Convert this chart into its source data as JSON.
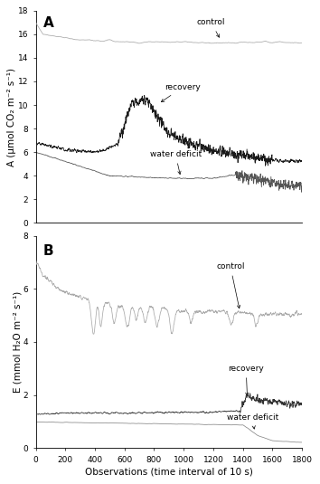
{
  "panel_A": {
    "label": "A",
    "ylabel": "A (μmol CO₂ m⁻² s⁻¹)",
    "ylim": [
      0,
      18
    ],
    "yticks": [
      0,
      2,
      4,
      6,
      8,
      10,
      12,
      14,
      16,
      18
    ],
    "xlim": [
      0,
      1800
    ],
    "xticks_A": [
      0,
      200,
      400,
      600,
      800,
      1000,
      1200,
      1400,
      1600,
      1800
    ]
  },
  "panel_B": {
    "label": "B",
    "ylabel": "E (mmol H₂O m⁻² s⁻¹)",
    "ylim": [
      0,
      8
    ],
    "yticks": [
      0,
      2,
      4,
      6,
      8
    ],
    "xlim": [
      0,
      1800
    ],
    "xticks": [
      0,
      200,
      400,
      600,
      800,
      1000,
      1200,
      1400,
      1600,
      1800
    ],
    "xlabel": "Observations (time interval of 10 s)"
  },
  "fig_bg": "#ffffff",
  "line_width": 0.55,
  "annotation_fontsize": 6.5,
  "label_fontsize": 7.5,
  "tick_fontsize": 6.5
}
